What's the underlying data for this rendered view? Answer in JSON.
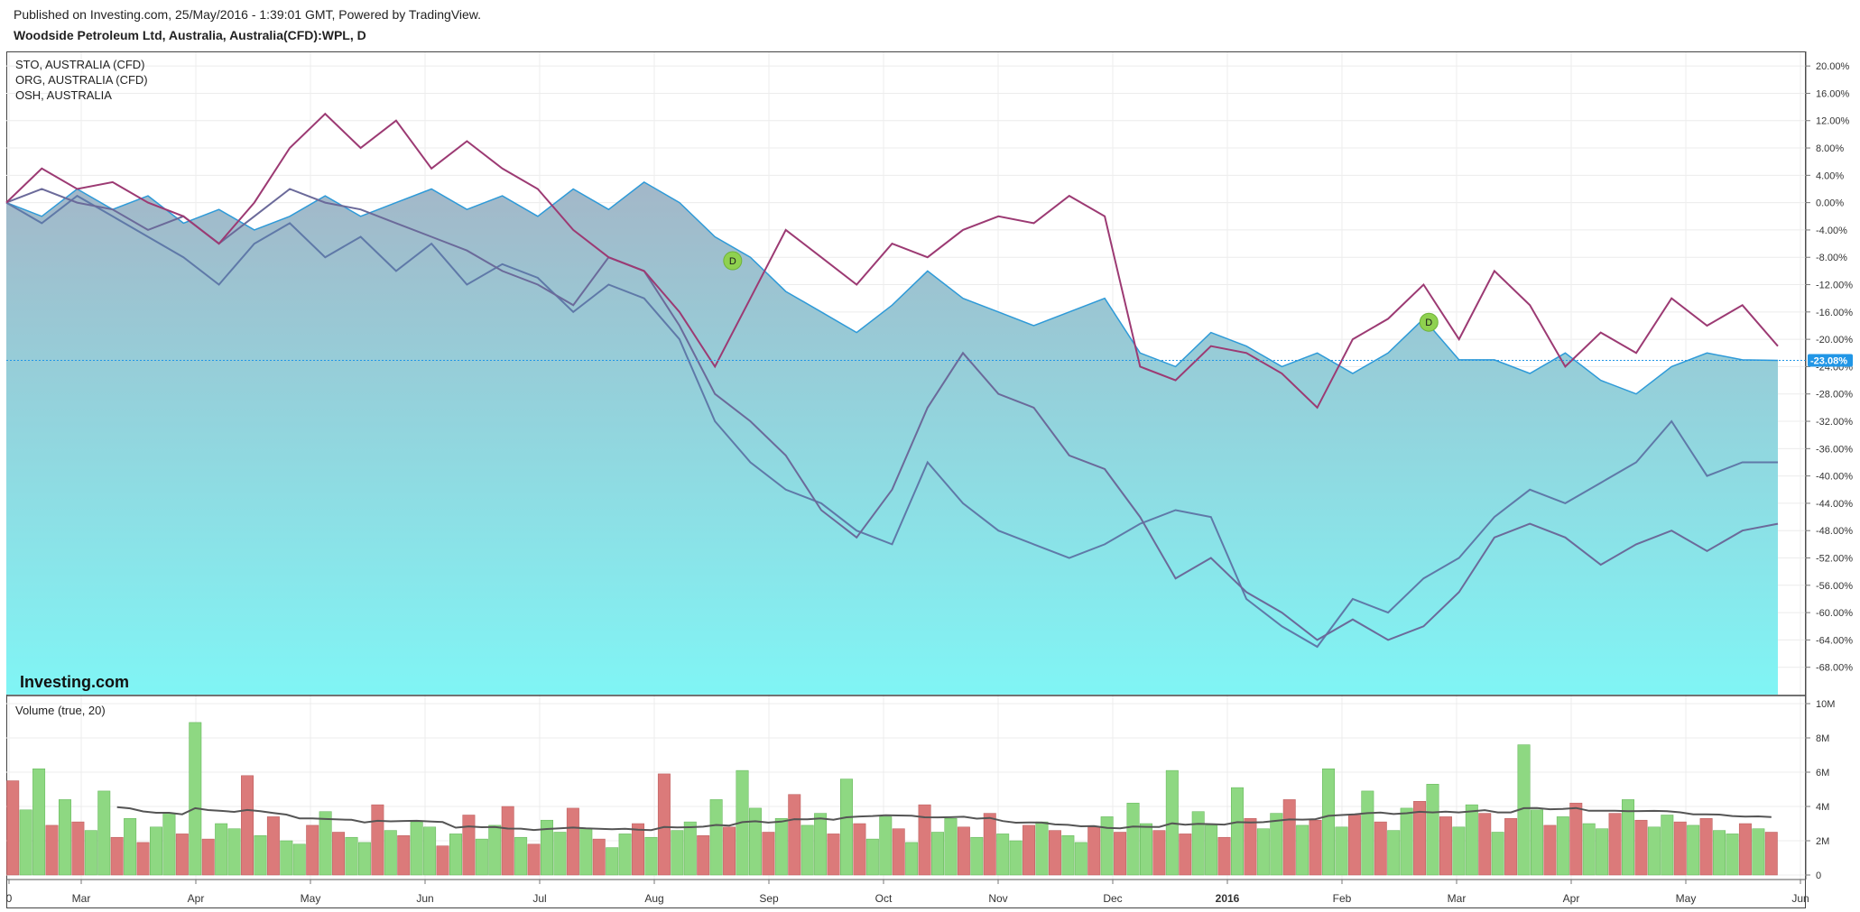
{
  "header": {
    "published": "Published on Investing.com, 25/May/2016 - 1:39:01 GMT, Powered by TradingView.",
    "title": "Woodside Petroleum Ltd, Australia, Australia(CFD):WPL, D"
  },
  "legend": [
    "STO, AUSTRALIA (CFD)",
    "ORG, AUSTRALIA (CFD)",
    "OSH, AUSTRALIA"
  ],
  "logo": "Investing.com",
  "colors": {
    "main": "#2e9ad8",
    "fill_top": "#a3b7c8",
    "fill_bottom": "#80f5f5",
    "sto": "#9c3a73",
    "org": "#6b6a9a",
    "osh": "#5f79a8",
    "vol_up": "#8ed882",
    "vol_down": "#db7a7a",
    "vol_ma": "#555555",
    "last_badge": "#2196e6"
  },
  "chart_data": [
    {
      "type": "line",
      "title": "Woodside Petroleum Ltd, Australia, Australia(CFD):WPL, D",
      "x_tick_labels": [
        "0",
        "Mar",
        "Apr",
        "May",
        "Jun",
        "Jul",
        "Aug",
        "Sep",
        "Oct",
        "Nov",
        "Dec",
        "2016",
        "Feb",
        "Mar",
        "Apr",
        "May",
        "Jun"
      ],
      "y_tick_labels": [
        "20.00%",
        "16.00%",
        "12.00%",
        "8.00%",
        "4.00%",
        "0.00%",
        "-4.00%",
        "-8.00%",
        "-12.00%",
        "-16.00%",
        "-20.00%",
        "-24.00%",
        "-28.00%",
        "-32.00%",
        "-36.00%",
        "-40.00%",
        "-44.00%",
        "-48.00%",
        "-52.00%",
        "-56.00%",
        "-60.00%",
        "-64.00%",
        "-68.00%"
      ],
      "ylim": [
        -72,
        22
      ],
      "last_value_label": "-23.08%",
      "last_value": -23.08,
      "dividend_markers": [
        {
          "label": "D",
          "x": 0.41,
          "y": -8.5
        },
        {
          "label": "D",
          "x": 0.803,
          "y": -17.5
        }
      ],
      "series": [
        {
          "name": "WPL",
          "style": "area",
          "points": [
            [
              0,
              0
            ],
            [
              0.02,
              -2
            ],
            [
              0.04,
              2
            ],
            [
              0.06,
              -1
            ],
            [
              0.08,
              1
            ],
            [
              0.1,
              -3
            ],
            [
              0.12,
              -1
            ],
            [
              0.14,
              -4
            ],
            [
              0.16,
              -2
            ],
            [
              0.18,
              1
            ],
            [
              0.2,
              -2
            ],
            [
              0.22,
              0
            ],
            [
              0.24,
              2
            ],
            [
              0.26,
              -1
            ],
            [
              0.28,
              1
            ],
            [
              0.3,
              -2
            ],
            [
              0.32,
              2
            ],
            [
              0.34,
              -1
            ],
            [
              0.36,
              3
            ],
            [
              0.38,
              0
            ],
            [
              0.4,
              -5
            ],
            [
              0.42,
              -8
            ],
            [
              0.44,
              -13
            ],
            [
              0.46,
              -16
            ],
            [
              0.48,
              -19
            ],
            [
              0.5,
              -15
            ],
            [
              0.52,
              -10
            ],
            [
              0.54,
              -14
            ],
            [
              0.56,
              -16
            ],
            [
              0.58,
              -18
            ],
            [
              0.6,
              -16
            ],
            [
              0.62,
              -14
            ],
            [
              0.64,
              -22
            ],
            [
              0.66,
              -24
            ],
            [
              0.68,
              -19
            ],
            [
              0.7,
              -21
            ],
            [
              0.72,
              -24
            ],
            [
              0.74,
              -22
            ],
            [
              0.76,
              -25
            ],
            [
              0.78,
              -22
            ],
            [
              0.8,
              -17
            ],
            [
              0.82,
              -23
            ],
            [
              0.84,
              -23
            ],
            [
              0.86,
              -25
            ],
            [
              0.88,
              -22
            ],
            [
              0.9,
              -26
            ],
            [
              0.92,
              -28
            ],
            [
              0.94,
              -24
            ],
            [
              0.96,
              -22
            ],
            [
              0.98,
              -23
            ],
            [
              1,
              -23.08
            ]
          ]
        },
        {
          "name": "STO, AUSTRALIA (CFD)",
          "points": [
            [
              0,
              0
            ],
            [
              0.02,
              5
            ],
            [
              0.04,
              2
            ],
            [
              0.06,
              3
            ],
            [
              0.08,
              0
            ],
            [
              0.1,
              -2
            ],
            [
              0.12,
              -6
            ],
            [
              0.14,
              0
            ],
            [
              0.16,
              8
            ],
            [
              0.18,
              13
            ],
            [
              0.2,
              8
            ],
            [
              0.22,
              12
            ],
            [
              0.24,
              5
            ],
            [
              0.26,
              9
            ],
            [
              0.28,
              5
            ],
            [
              0.3,
              2
            ],
            [
              0.32,
              -4
            ],
            [
              0.34,
              -8
            ],
            [
              0.36,
              -10
            ],
            [
              0.38,
              -16
            ],
            [
              0.4,
              -24
            ],
            [
              0.42,
              -14
            ],
            [
              0.44,
              -4
            ],
            [
              0.46,
              -8
            ],
            [
              0.48,
              -12
            ],
            [
              0.5,
              -6
            ],
            [
              0.52,
              -8
            ],
            [
              0.54,
              -4
            ],
            [
              0.56,
              -2
            ],
            [
              0.58,
              -3
            ],
            [
              0.6,
              1
            ],
            [
              0.62,
              -2
            ],
            [
              0.64,
              -24
            ],
            [
              0.66,
              -26
            ],
            [
              0.68,
              -21
            ],
            [
              0.7,
              -22
            ],
            [
              0.72,
              -25
            ],
            [
              0.74,
              -30
            ],
            [
              0.76,
              -20
            ],
            [
              0.78,
              -17
            ],
            [
              0.8,
              -12
            ],
            [
              0.82,
              -20
            ],
            [
              0.84,
              -10
            ],
            [
              0.86,
              -15
            ],
            [
              0.88,
              -24
            ],
            [
              0.9,
              -19
            ],
            [
              0.92,
              -22
            ],
            [
              0.94,
              -14
            ],
            [
              0.96,
              -18
            ],
            [
              0.98,
              -15
            ],
            [
              1,
              -21
            ]
          ]
        },
        {
          "name": "ORG, AUSTRALIA (CFD)",
          "points": [
            [
              0,
              0
            ],
            [
              0.02,
              2
            ],
            [
              0.04,
              0
            ],
            [
              0.06,
              -1
            ],
            [
              0.08,
              -4
            ],
            [
              0.1,
              -2
            ],
            [
              0.12,
              -6
            ],
            [
              0.14,
              -2
            ],
            [
              0.16,
              2
            ],
            [
              0.18,
              0
            ],
            [
              0.2,
              -1
            ],
            [
              0.22,
              -3
            ],
            [
              0.24,
              -5
            ],
            [
              0.26,
              -7
            ],
            [
              0.28,
              -10
            ],
            [
              0.3,
              -12
            ],
            [
              0.32,
              -15
            ],
            [
              0.34,
              -8
            ],
            [
              0.36,
              -10
            ],
            [
              0.38,
              -18
            ],
            [
              0.4,
              -28
            ],
            [
              0.42,
              -32
            ],
            [
              0.44,
              -37
            ],
            [
              0.46,
              -45
            ],
            [
              0.48,
              -49
            ],
            [
              0.5,
              -42
            ],
            [
              0.52,
              -30
            ],
            [
              0.54,
              -22
            ],
            [
              0.56,
              -28
            ],
            [
              0.58,
              -30
            ],
            [
              0.6,
              -37
            ],
            [
              0.62,
              -39
            ],
            [
              0.64,
              -46
            ],
            [
              0.66,
              -55
            ],
            [
              0.68,
              -52
            ],
            [
              0.7,
              -57
            ],
            [
              0.72,
              -60
            ],
            [
              0.74,
              -64
            ],
            [
              0.76,
              -61
            ],
            [
              0.78,
              -64
            ],
            [
              0.8,
              -62
            ],
            [
              0.82,
              -57
            ],
            [
              0.84,
              -49
            ],
            [
              0.86,
              -47
            ],
            [
              0.88,
              -49
            ],
            [
              0.9,
              -53
            ],
            [
              0.92,
              -50
            ],
            [
              0.94,
              -48
            ],
            [
              0.96,
              -51
            ],
            [
              0.98,
              -48
            ],
            [
              1,
              -47
            ]
          ]
        },
        {
          "name": "OSH, AUSTRALIA",
          "points": [
            [
              0,
              0
            ],
            [
              0.02,
              -3
            ],
            [
              0.04,
              1
            ],
            [
              0.06,
              -2
            ],
            [
              0.08,
              -5
            ],
            [
              0.1,
              -8
            ],
            [
              0.12,
              -12
            ],
            [
              0.14,
              -6
            ],
            [
              0.16,
              -3
            ],
            [
              0.18,
              -8
            ],
            [
              0.2,
              -5
            ],
            [
              0.22,
              -10
            ],
            [
              0.24,
              -6
            ],
            [
              0.26,
              -12
            ],
            [
              0.28,
              -9
            ],
            [
              0.3,
              -11
            ],
            [
              0.32,
              -16
            ],
            [
              0.34,
              -12
            ],
            [
              0.36,
              -14
            ],
            [
              0.38,
              -20
            ],
            [
              0.4,
              -32
            ],
            [
              0.42,
              -38
            ],
            [
              0.44,
              -42
            ],
            [
              0.46,
              -44
            ],
            [
              0.48,
              -48
            ],
            [
              0.5,
              -50
            ],
            [
              0.52,
              -38
            ],
            [
              0.54,
              -44
            ],
            [
              0.56,
              -48
            ],
            [
              0.58,
              -50
            ],
            [
              0.6,
              -52
            ],
            [
              0.62,
              -50
            ],
            [
              0.64,
              -47
            ],
            [
              0.66,
              -45
            ],
            [
              0.68,
              -46
            ],
            [
              0.7,
              -58
            ],
            [
              0.72,
              -62
            ],
            [
              0.74,
              -65
            ],
            [
              0.76,
              -58
            ],
            [
              0.78,
              -60
            ],
            [
              0.8,
              -55
            ],
            [
              0.82,
              -52
            ],
            [
              0.84,
              -46
            ],
            [
              0.86,
              -42
            ],
            [
              0.88,
              -44
            ],
            [
              0.9,
              -41
            ],
            [
              0.92,
              -38
            ],
            [
              0.94,
              -32
            ],
            [
              0.96,
              -40
            ],
            [
              0.98,
              -38
            ],
            [
              1,
              -38
            ]
          ]
        }
      ]
    },
    {
      "type": "bar",
      "title": "Volume (true, 20)",
      "y_tick_labels": [
        "10M",
        "8M",
        "6M",
        "4M",
        "2M",
        "0"
      ],
      "ylim": [
        0,
        10
      ],
      "values_millions": [
        5.5,
        3.8,
        6.2,
        2.9,
        4.4,
        3.1,
        2.6,
        4.9,
        2.2,
        3.3,
        1.9,
        2.8,
        3.6,
        2.4,
        8.9,
        2.1,
        3.0,
        2.7,
        5.8,
        2.3,
        3.4,
        2.0,
        1.8,
        2.9,
        3.7,
        2.5,
        2.2,
        1.9,
        4.1,
        2.6,
        2.3,
        3.1,
        2.8,
        1.7,
        2.4,
        3.5,
        2.1,
        2.9,
        4.0,
        2.2,
        1.8,
        3.2,
        2.5,
        3.9,
        2.7,
        2.1,
        1.6,
        2.4,
        3.0,
        2.2,
        5.9,
        2.6,
        3.1,
        2.3,
        4.4,
        2.8,
        6.1,
        3.9,
        2.5,
        3.3,
        4.7,
        2.9,
        3.6,
        2.4,
        5.6,
        3.0,
        2.1,
        3.4,
        2.7,
        1.9,
        4.1,
        2.5,
        3.3,
        2.8,
        2.2,
        3.6,
        2.4,
        2.0,
        2.9,
        3.1,
        2.6,
        2.3,
        1.9,
        2.8,
        3.4,
        2.5,
        4.2,
        3.0,
        2.6,
        6.1,
        2.4,
        3.7,
        2.9,
        2.2,
        5.1,
        3.3,
        2.7,
        3.6,
        4.4,
        2.9,
        3.2,
        6.2,
        2.8,
        3.5,
        4.9,
        3.1,
        2.6,
        3.9,
        4.3,
        5.3,
        3.4,
        2.8,
        4.1,
        3.6,
        2.5,
        3.3,
        7.6,
        3.8,
        2.9,
        3.4,
        4.2,
        3.0,
        2.7,
        3.6,
        4.4,
        3.2,
        2.8,
        3.5,
        3.1,
        2.9,
        3.3,
        2.6,
        2.4,
        3.0,
        2.7,
        2.5
      ]
    }
  ]
}
